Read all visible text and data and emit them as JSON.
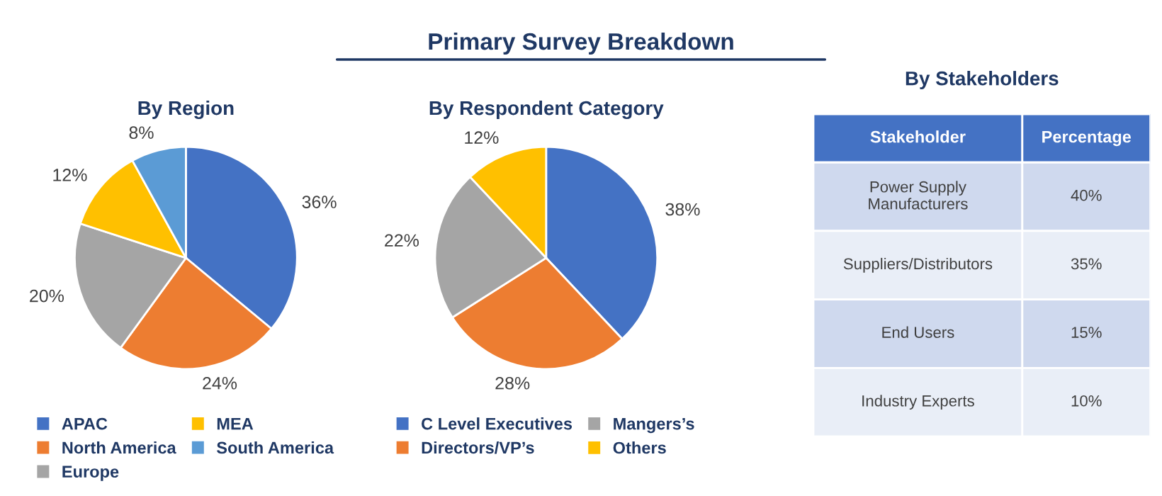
{
  "chart_data": [
    {
      "type": "pie",
      "title": "By Region",
      "annotations": [
        "Primary Survey Breakdown"
      ],
      "categories": [
        "APAC",
        "North America",
        "Europe",
        "MEA",
        "South America"
      ],
      "values": [
        36,
        24,
        20,
        12,
        8
      ],
      "value_labels": [
        "36%",
        "24%",
        "20%",
        "12%",
        "8%"
      ],
      "colors": [
        "#4472c4",
        "#ed7d31",
        "#a5a5a5",
        "#ffc000",
        "#5b9bd5"
      ],
      "legend": "bottom"
    },
    {
      "type": "pie",
      "title": "By Respondent Category",
      "categories": [
        "C Level Executives",
        "Directors/VP’s",
        "Mangers’s",
        "Others"
      ],
      "values": [
        38,
        28,
        22,
        12
      ],
      "value_labels": [
        "38%",
        "28%",
        "22%",
        "12%"
      ],
      "colors": [
        "#4472c4",
        "#ed7d31",
        "#a5a5a5",
        "#ffc000"
      ],
      "legend": "bottom"
    },
    {
      "type": "other",
      "title": "By Stakeholders",
      "annotations": [
        "Stakeholder",
        "Percentage"
      ],
      "categories": [
        "Power Supply\nManufacturers",
        "Suppliers/Distributors",
        "End Users",
        "Industry Experts"
      ],
      "value_labels": [
        "40%",
        "35%",
        "15%",
        "10%"
      ]
    }
  ]
}
